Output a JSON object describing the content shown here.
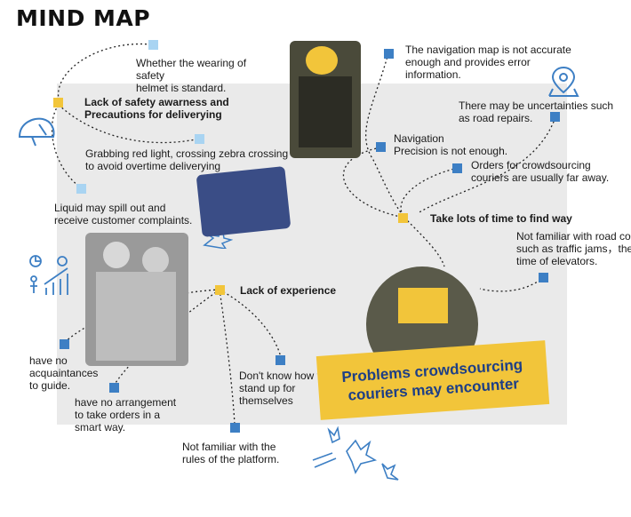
{
  "title": "MIND MAP",
  "center": {
    "label": "Problems crowdsourcing\ncouriers may encounter"
  },
  "branches": {
    "safety": {
      "label": "Lack of safety awarness and\nPrecautions for deliverying"
    },
    "find_way": {
      "label": "Take lots of time to find way"
    },
    "experience": {
      "label": "Lack of experience"
    }
  },
  "leaves": {
    "helmet": "Whether the wearing of safety\nhelmet is standard.",
    "red_light": "Grabbing red light, crossing zebra crossing\nto avoid overtime deliverying",
    "liquid": "Liquid may spill out and\nreceive customer complaints.",
    "nav_map": "The navigation map is not accurate\nenough and provides error\ninformation.",
    "road_repairs": "There may be uncertainties such\nas road repairs.",
    "nav_precision": "Navigation\nPrecision is not enough.",
    "far_away": "Orders for crowdsourcing\ncouriers are usually far away.",
    "road_conditions": "Not familiar with road conditions\nsuch as traffic jams，the waiting\ntime of elevators.",
    "acquaintances": "have no\nacquaintances\nto guide.",
    "arrangement": "have no arrangement\nto take orders in a\nsmart way.",
    "rules": "Not familiar with the\nrules of the platform.",
    "stand_up": "Don't know how to\nstand up for\nthemselves"
  },
  "colors": {
    "accent_yellow": "#f2c53a",
    "accent_blue": "#3d7fc4",
    "light_blue": "#a9d4f2",
    "banner_text": "#1e3f86"
  },
  "icons": [
    "helmet-icon",
    "location-pin-icon",
    "people-chart-icon",
    "splash-icon"
  ]
}
